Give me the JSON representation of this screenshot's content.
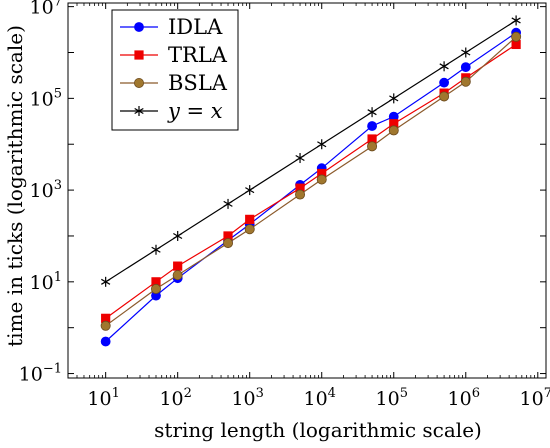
{
  "chart_data": {
    "type": "line",
    "title": "",
    "xlabel": "string length (logarithmic scale)",
    "ylabel": "time in ticks (logarithmic scale)",
    "x_scale": "log",
    "y_scale": "log",
    "xlim": [
      3,
      13000000
    ],
    "ylim": [
      0.08,
      12000000
    ],
    "x_ticks": [
      10,
      100,
      1000,
      10000,
      100000,
      1000000,
      10000000
    ],
    "x_tick_labels": [
      {
        "base": "10",
        "exp": "1"
      },
      {
        "base": "10",
        "exp": "2"
      },
      {
        "base": "10",
        "exp": "3"
      },
      {
        "base": "10",
        "exp": "4"
      },
      {
        "base": "10",
        "exp": "5"
      },
      {
        "base": "10",
        "exp": "6"
      },
      {
        "base": "10",
        "exp": "7"
      }
    ],
    "y_ticks": [
      0.1,
      10,
      1000,
      100000,
      10000000
    ],
    "y_tick_labels": [
      {
        "base": "10",
        "exp": "−1"
      },
      {
        "base": "10",
        "exp": "1"
      },
      {
        "base": "10",
        "exp": "3"
      },
      {
        "base": "10",
        "exp": "5"
      },
      {
        "base": "10",
        "exp": "7"
      }
    ],
    "grid": false,
    "legend_position": "top-left",
    "x": [
      10,
      50,
      100,
      500,
      1000,
      5000,
      10000,
      50000,
      100000,
      500000,
      1000000,
      5000000
    ],
    "series": [
      {
        "name": "IDLA",
        "color": "#0000ff",
        "marker": "circle",
        "values": [
          0.5,
          5,
          12,
          80,
          180,
          1300,
          3000,
          25000,
          40000,
          220000,
          480000,
          2700000
        ]
      },
      {
        "name": "TRLA",
        "color": "#ee0000",
        "marker": "square",
        "values": [
          1.6,
          10,
          22,
          100,
          230,
          1100,
          2300,
          13000,
          28000,
          130000,
          280000,
          1500000
        ]
      },
      {
        "name": "BSLA",
        "color": "#8b5a2b",
        "marker": "circle",
        "values": [
          1.1,
          7,
          14,
          70,
          140,
          800,
          1700,
          9000,
          20000,
          110000,
          230000,
          2200000
        ]
      },
      {
        "name_math": "y = x",
        "color": "#000000",
        "marker": "star",
        "values": [
          10,
          50,
          100,
          500,
          1000,
          5000,
          10000,
          50000,
          100000,
          500000,
          1000000,
          5000000
        ]
      }
    ]
  }
}
